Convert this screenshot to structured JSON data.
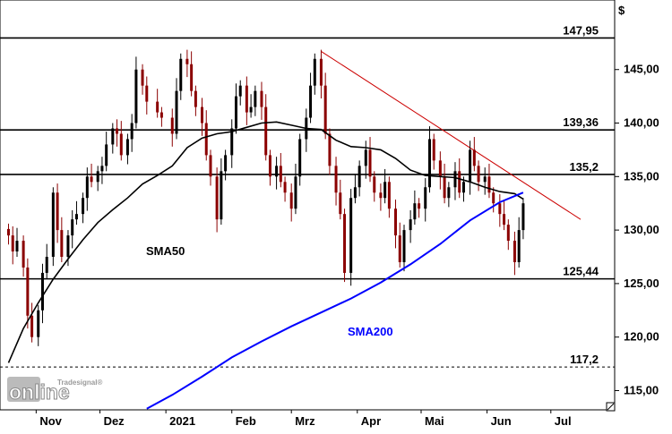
{
  "chart_data": {
    "type": "candlestick",
    "currency_label": "$",
    "y_ticks": [
      "145,00",
      "140,00",
      "135,00",
      "130,00",
      "125,00",
      "120,00",
      "115,00"
    ],
    "x_ticks": [
      "Nov",
      "Dez",
      "2021",
      "Feb",
      "Mrz",
      "Apr",
      "Mai",
      "Jun",
      "Jul"
    ],
    "ylim": [
      113.2,
      151.5
    ],
    "grid": false,
    "horizontal_levels": [
      {
        "label": "147,95",
        "value": 147.95,
        "style": "solid"
      },
      {
        "label": "139,36",
        "value": 139.36,
        "style": "solid"
      },
      {
        "label": "135,2",
        "value": 135.2,
        "style": "solid"
      },
      {
        "label": "125,44",
        "value": 125.44,
        "style": "solid"
      },
      {
        "label": "117,2",
        "value": 117.2,
        "style": "dashed"
      }
    ],
    "indicator_labels": {
      "sma50": "SMA50",
      "sma200": "SMA200"
    },
    "colors": {
      "up": "#000000",
      "down": "#8b0000",
      "sma50": "#000000",
      "sma200": "#0000ff",
      "trendline": "#cc0000"
    },
    "trendline": {
      "start": {
        "x": "2021-03-15",
        "y": 146.7
      },
      "end": {
        "x": "2021-07-15",
        "y": 131.0
      }
    },
    "closes": [
      {
        "d": "2020-10-19",
        "c": 129.5
      },
      {
        "d": "2020-10-21",
        "c": 128.0
      },
      {
        "d": "2020-10-23",
        "c": 129.0
      },
      {
        "d": "2020-10-26",
        "c": 126.5
      },
      {
        "d": "2020-10-28",
        "c": 122.0
      },
      {
        "d": "2020-10-30",
        "c": 120.0
      },
      {
        "d": "2020-11-02",
        "c": 122.5
      },
      {
        "d": "2020-11-04",
        "c": 126.0
      },
      {
        "d": "2020-11-06",
        "c": 127.5
      },
      {
        "d": "2020-11-09",
        "c": 133.5
      },
      {
        "d": "2020-11-11",
        "c": 130.0
      },
      {
        "d": "2020-11-13",
        "c": 127.5
      },
      {
        "d": "2020-11-16",
        "c": 129.5
      },
      {
        "d": "2020-11-18",
        "c": 131.0
      },
      {
        "d": "2020-11-20",
        "c": 131.5
      },
      {
        "d": "2020-11-23",
        "c": 133.0
      },
      {
        "d": "2020-11-25",
        "c": 135.0
      },
      {
        "d": "2020-11-27",
        "c": 134.5
      },
      {
        "d": "2020-11-30",
        "c": 135.5
      },
      {
        "d": "2020-12-02",
        "c": 136.0
      },
      {
        "d": "2020-12-04",
        "c": 138.0
      },
      {
        "d": "2020-12-07",
        "c": 139.5
      },
      {
        "d": "2020-12-09",
        "c": 139.0
      },
      {
        "d": "2020-12-11",
        "c": 137.0
      },
      {
        "d": "2020-12-14",
        "c": 138.5
      },
      {
        "d": "2020-12-16",
        "c": 140.0
      },
      {
        "d": "2020-12-18",
        "c": 145.0
      },
      {
        "d": "2020-12-21",
        "c": 143.5
      },
      {
        "d": "2020-12-23",
        "c": 142.0
      },
      {
        "d": "2020-12-28",
        "c": 141.0
      },
      {
        "d": "2020-12-30",
        "c": 140.5
      },
      {
        "d": "2021-01-04",
        "c": 139.0
      },
      {
        "d": "2021-01-06",
        "c": 143.0
      },
      {
        "d": "2021-01-08",
        "c": 146.0
      },
      {
        "d": "2021-01-11",
        "c": 145.5
      },
      {
        "d": "2021-01-13",
        "c": 143.0
      },
      {
        "d": "2021-01-15",
        "c": 141.5
      },
      {
        "d": "2021-01-18",
        "c": 140.0
      },
      {
        "d": "2021-01-20",
        "c": 137.0
      },
      {
        "d": "2021-01-22",
        "c": 135.0
      },
      {
        "d": "2021-01-25",
        "c": 131.0
      },
      {
        "d": "2021-01-27",
        "c": 135.5
      },
      {
        "d": "2021-01-29",
        "c": 137.0
      },
      {
        "d": "2021-02-01",
        "c": 139.5
      },
      {
        "d": "2021-02-03",
        "c": 142.5
      },
      {
        "d": "2021-02-05",
        "c": 143.5
      },
      {
        "d": "2021-02-08",
        "c": 141.0
      },
      {
        "d": "2021-02-10",
        "c": 141.5
      },
      {
        "d": "2021-02-12",
        "c": 143.0
      },
      {
        "d": "2021-02-15",
        "c": 141.5
      },
      {
        "d": "2021-02-17",
        "c": 137.0
      },
      {
        "d": "2021-02-19",
        "c": 135.0
      },
      {
        "d": "2021-02-22",
        "c": 136.0
      },
      {
        "d": "2021-02-24",
        "c": 134.5
      },
      {
        "d": "2021-02-26",
        "c": 133.5
      },
      {
        "d": "2021-03-01",
        "c": 132.0
      },
      {
        "d": "2021-03-03",
        "c": 135.0
      },
      {
        "d": "2021-03-05",
        "c": 138.5
      },
      {
        "d": "2021-03-08",
        "c": 140.5
      },
      {
        "d": "2021-03-10",
        "c": 143.5
      },
      {
        "d": "2021-03-12",
        "c": 146.0
      },
      {
        "d": "2021-03-15",
        "c": 143.5
      },
      {
        "d": "2021-03-17",
        "c": 139.0
      },
      {
        "d": "2021-03-19",
        "c": 136.0
      },
      {
        "d": "2021-03-22",
        "c": 133.5
      },
      {
        "d": "2021-03-24",
        "c": 131.5
      },
      {
        "d": "2021-03-26",
        "c": 126.0
      },
      {
        "d": "2021-03-29",
        "c": 133.0
      },
      {
        "d": "2021-03-31",
        "c": 134.0
      },
      {
        "d": "2021-04-02",
        "c": 136.0
      },
      {
        "d": "2021-04-05",
        "c": 137.5
      },
      {
        "d": "2021-04-07",
        "c": 135.0
      },
      {
        "d": "2021-04-09",
        "c": 133.5
      },
      {
        "d": "2021-04-12",
        "c": 133.0
      },
      {
        "d": "2021-04-14",
        "c": 134.5
      },
      {
        "d": "2021-04-16",
        "c": 132.0
      },
      {
        "d": "2021-04-19",
        "c": 129.5
      },
      {
        "d": "2021-04-21",
        "c": 127.0
      },
      {
        "d": "2021-04-23",
        "c": 130.0
      },
      {
        "d": "2021-04-26",
        "c": 131.0
      },
      {
        "d": "2021-04-28",
        "c": 132.5
      },
      {
        "d": "2021-04-30",
        "c": 132.0
      },
      {
        "d": "2021-05-03",
        "c": 134.0
      },
      {
        "d": "2021-05-05",
        "c": 138.5
      },
      {
        "d": "2021-05-07",
        "c": 136.5
      },
      {
        "d": "2021-05-10",
        "c": 135.0
      },
      {
        "d": "2021-05-12",
        "c": 133.0
      },
      {
        "d": "2021-05-14",
        "c": 134.0
      },
      {
        "d": "2021-05-17",
        "c": 135.5
      },
      {
        "d": "2021-05-19",
        "c": 133.5
      },
      {
        "d": "2021-05-21",
        "c": 134.5
      },
      {
        "d": "2021-05-24",
        "c": 137.5
      },
      {
        "d": "2021-05-26",
        "c": 136.0
      },
      {
        "d": "2021-05-28",
        "c": 134.5
      },
      {
        "d": "2021-05-31",
        "c": 135.0
      },
      {
        "d": "2021-06-02",
        "c": 133.5
      },
      {
        "d": "2021-06-04",
        "c": 132.5
      },
      {
        "d": "2021-06-07",
        "c": 131.5
      },
      {
        "d": "2021-06-09",
        "c": 130.5
      },
      {
        "d": "2021-06-11",
        "c": 129.0
      },
      {
        "d": "2021-06-14",
        "c": 127.0
      },
      {
        "d": "2021-06-16",
        "c": 130.0
      },
      {
        "d": "2021-06-18",
        "c": 132.5
      }
    ],
    "sma50": [
      {
        "d": "2020-10-19",
        "v": 117.6
      },
      {
        "d": "2020-10-26",
        "v": 120.8
      },
      {
        "d": "2020-11-02",
        "v": 123.2
      },
      {
        "d": "2020-11-09",
        "v": 125.4
      },
      {
        "d": "2020-11-16",
        "v": 127.3
      },
      {
        "d": "2020-11-23",
        "v": 129.1
      },
      {
        "d": "2020-11-30",
        "v": 130.7
      },
      {
        "d": "2020-12-07",
        "v": 131.9
      },
      {
        "d": "2020-12-14",
        "v": 133.0
      },
      {
        "d": "2020-12-21",
        "v": 134.3
      },
      {
        "d": "2020-12-28",
        "v": 135.1
      },
      {
        "d": "2021-01-04",
        "v": 136.0
      },
      {
        "d": "2021-01-11",
        "v": 137.7
      },
      {
        "d": "2021-01-18",
        "v": 138.6
      },
      {
        "d": "2021-01-25",
        "v": 139.0
      },
      {
        "d": "2021-02-01",
        "v": 139.2
      },
      {
        "d": "2021-02-08",
        "v": 139.6
      },
      {
        "d": "2021-02-15",
        "v": 140.0
      },
      {
        "d": "2021-02-22",
        "v": 140.1
      },
      {
        "d": "2021-03-01",
        "v": 139.8
      },
      {
        "d": "2021-03-08",
        "v": 139.5
      },
      {
        "d": "2021-03-15",
        "v": 139.4
      },
      {
        "d": "2021-03-22",
        "v": 138.4
      },
      {
        "d": "2021-03-29",
        "v": 137.8
      },
      {
        "d": "2021-04-05",
        "v": 137.7
      },
      {
        "d": "2021-04-12",
        "v": 137.5
      },
      {
        "d": "2021-04-19",
        "v": 136.7
      },
      {
        "d": "2021-04-26",
        "v": 135.6
      },
      {
        "d": "2021-05-03",
        "v": 135.1
      },
      {
        "d": "2021-05-10",
        "v": 135.0
      },
      {
        "d": "2021-05-17",
        "v": 134.9
      },
      {
        "d": "2021-05-24",
        "v": 134.5
      },
      {
        "d": "2021-05-31",
        "v": 134.0
      },
      {
        "d": "2021-06-07",
        "v": 133.6
      },
      {
        "d": "2021-06-14",
        "v": 133.4
      },
      {
        "d": "2021-06-18",
        "v": 132.9
      }
    ],
    "sma200": [
      {
        "d": "2020-12-23",
        "v": 113.3
      },
      {
        "d": "2021-01-04",
        "v": 114.6
      },
      {
        "d": "2021-01-18",
        "v": 116.3
      },
      {
        "d": "2021-02-01",
        "v": 118.1
      },
      {
        "d": "2021-02-15",
        "v": 119.6
      },
      {
        "d": "2021-03-01",
        "v": 121.0
      },
      {
        "d": "2021-03-15",
        "v": 122.3
      },
      {
        "d": "2021-03-29",
        "v": 123.6
      },
      {
        "d": "2021-04-12",
        "v": 125.1
      },
      {
        "d": "2021-04-26",
        "v": 126.8
      },
      {
        "d": "2021-05-10",
        "v": 128.7
      },
      {
        "d": "2021-05-24",
        "v": 130.9
      },
      {
        "d": "2021-06-07",
        "v": 132.6
      },
      {
        "d": "2021-06-18",
        "v": 133.5
      }
    ]
  },
  "brand": {
    "small": "Tradesignal®",
    "word": "online"
  }
}
